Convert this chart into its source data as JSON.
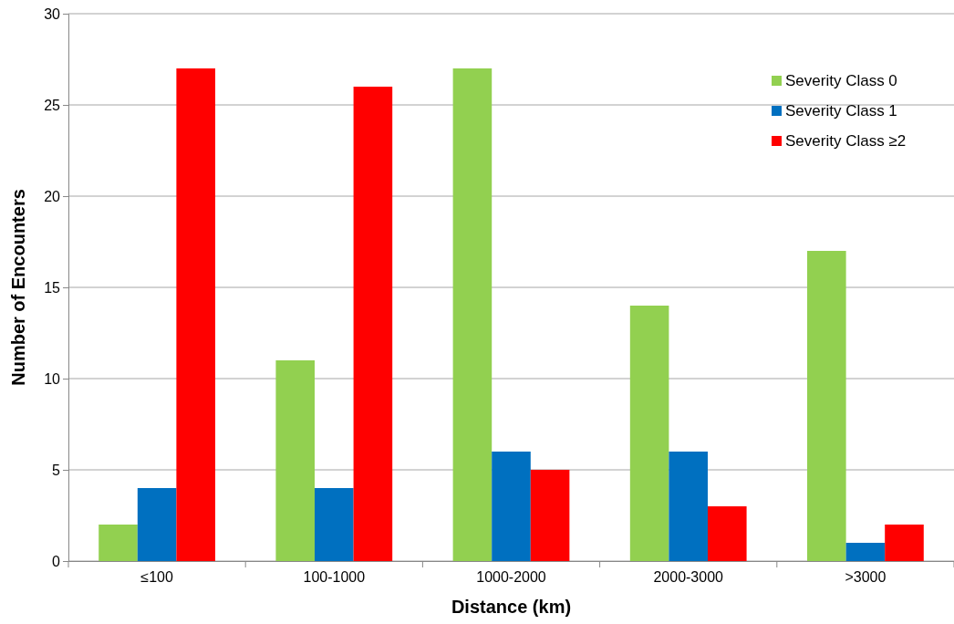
{
  "chart_data": {
    "type": "bar",
    "xlabel": "Distance (km)",
    "ylabel": "Number of Encounters",
    "categories": [
      "≤100",
      "100-1000",
      "1000-2000",
      "2000-3000",
      ">3000"
    ],
    "series": [
      {
        "name": "Severity Class 0",
        "color": "#92d050",
        "values": [
          2,
          11,
          27,
          14,
          17
        ]
      },
      {
        "name": "Severity Class 1",
        "color": "#0070c0",
        "values": [
          4,
          4,
          6,
          6,
          1
        ]
      },
      {
        "name": "Severity Class ≥2",
        "color": "#ff0000",
        "values": [
          27,
          26,
          5,
          3,
          2
        ]
      }
    ],
    "ylim": [
      0,
      30
    ],
    "yticks": [
      0,
      5,
      10,
      15,
      20,
      25,
      30
    ],
    "grid": "y",
    "legend": "top right"
  }
}
